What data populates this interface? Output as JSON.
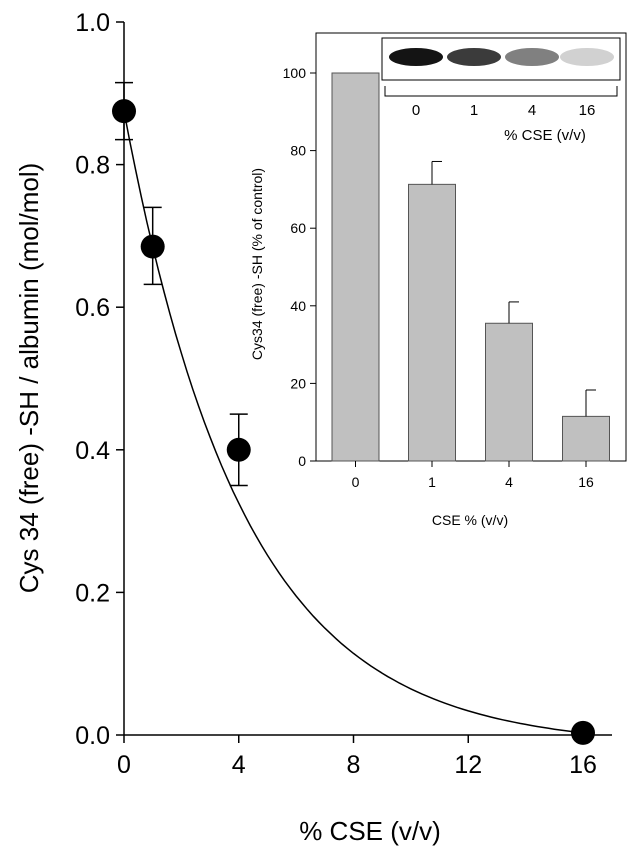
{
  "chart_data": [
    {
      "type": "scatter",
      "xlabel": "% CSE (v/v)",
      "ylabel": "Cys 34 (free) -SH / albumin (mol/mol)",
      "xlim": [
        0,
        18
      ],
      "ylim": [
        0,
        1.0
      ],
      "xticks": [
        "0",
        "4",
        "8",
        "12",
        "16"
      ],
      "yticks": [
        "0.0",
        "0.2",
        "0.4",
        "0.6",
        "0.8",
        "1.0"
      ],
      "x": [
        0,
        1,
        4,
        16
      ],
      "y": [
        0.875,
        0.685,
        0.4,
        0.003
      ],
      "error_upper": [
        0.915,
        0.74,
        0.45,
        0.003
      ],
      "error_lower": [
        0.835,
        0.632,
        0.35,
        0.003
      ],
      "fit": {
        "model": "exponential decay to plateau",
        "x": [
          0,
          16
        ],
        "y": [
          0.875,
          0.003
        ]
      },
      "grid": false,
      "marker": {
        "color": "#000000",
        "shape": "filled circle"
      }
    },
    {
      "type": "bar",
      "xlabel": "CSE % (v/v)",
      "ylabel": "Cys34 (free) -SH (% of control)",
      "categories": [
        "0",
        "1",
        "4",
        "16"
      ],
      "values": [
        100,
        71.3,
        35.5,
        11.5
      ],
      "error_upper": [
        100,
        77.2,
        41.0,
        18.3
      ],
      "ylim": [
        0,
        110
      ],
      "yticks": [
        "0",
        "20",
        "40",
        "60",
        "80",
        "100"
      ],
      "bar_color": "#c0c0c0",
      "grid": false
    }
  ],
  "blot": {
    "lanes": [
      "0",
      "1",
      "4",
      "16"
    ],
    "xlabel": "% CSE (v/v)",
    "band_intensity": [
      1.0,
      0.82,
      0.5,
      0.12
    ]
  }
}
